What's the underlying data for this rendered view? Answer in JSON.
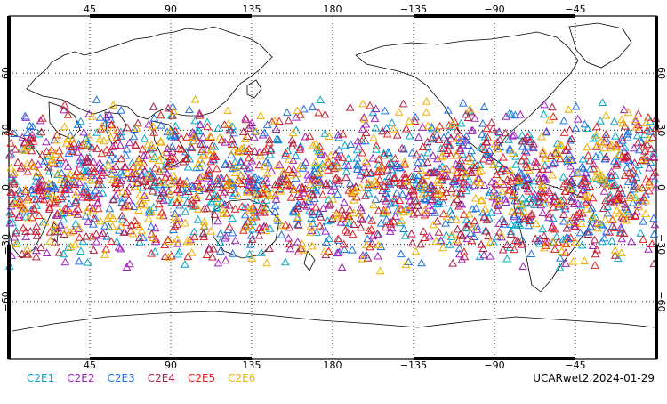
{
  "map": {
    "lon_ticks": [
      {
        "lon": 45,
        "label": "45"
      },
      {
        "lon": 90,
        "label": "90"
      },
      {
        "lon": 135,
        "label": "135"
      },
      {
        "lon": 180,
        "label": "180"
      },
      {
        "lon": 225,
        "label": "−135"
      },
      {
        "lon": 270,
        "label": "−90"
      },
      {
        "lon": 315,
        "label": "−45"
      }
    ],
    "lat_ticks": [
      {
        "lat": 60,
        "label": "60"
      },
      {
        "lat": 30,
        "label": "30"
      },
      {
        "lat": 0,
        "label": "0"
      },
      {
        "lat": -30,
        "label": "−30"
      },
      {
        "lat": -60,
        "label": "−60"
      }
    ],
    "lon_range": [
      0,
      360
    ],
    "lat_range": [
      -90,
      90
    ],
    "grid": "dotted",
    "marker": "triangle-outline"
  },
  "legend": {
    "placement": "bottom-left",
    "items": [
      {
        "label": "C2E1",
        "color": "#00a8c8"
      },
      {
        "label": "C2E2",
        "color": "#a020c0"
      },
      {
        "label": "C2E3",
        "color": "#2070e0"
      },
      {
        "label": "C2E4",
        "color": "#b02040"
      },
      {
        "label": "C2E5",
        "color": "#e02020"
      },
      {
        "label": "C2E6",
        "color": "#f0b000"
      }
    ]
  },
  "stamp": "UCARwet2.2024-01-29",
  "chart_data": {
    "type": "scatter",
    "title": "",
    "xlabel": "",
    "ylabel": "",
    "xlim": [
      0,
      360
    ],
    "ylim": [
      -90,
      90
    ],
    "point_lat_range": [
      -45,
      48
    ],
    "series": [
      {
        "name": "C2E1",
        "color": "#00a8c8",
        "density": 1.0
      },
      {
        "name": "C2E2",
        "color": "#a020c0",
        "density": 1.0
      },
      {
        "name": "C2E3",
        "color": "#2070e0",
        "density": 1.0
      },
      {
        "name": "C2E4",
        "color": "#b02040",
        "density": 1.0
      },
      {
        "name": "C2E5",
        "color": "#e02020",
        "density": 1.0
      },
      {
        "name": "C2E6",
        "color": "#f0b000",
        "density": 1.0
      }
    ]
  }
}
